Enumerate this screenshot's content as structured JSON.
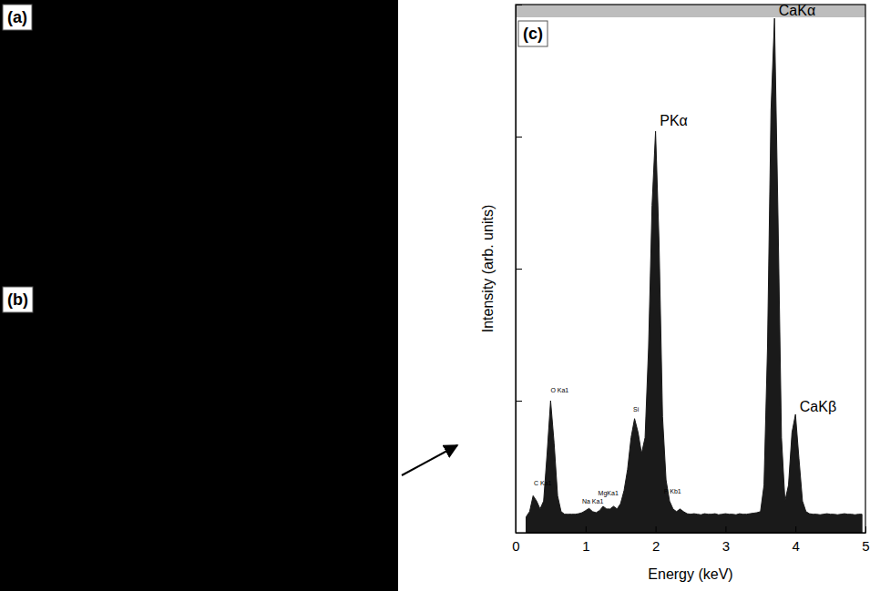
{
  "panels": [
    {
      "label": "(a)"
    },
    {
      "label": "(b)"
    }
  ],
  "chart_data": {
    "type": "area",
    "panel_label": "(c)",
    "x_label": "Energy (keV)",
    "y_label": "Intensity (arb. units)",
    "x": [
      0.15,
      0.2,
      0.25,
      0.3,
      0.35,
      0.4,
      0.45,
      0.5,
      0.55,
      0.6,
      0.65,
      0.7,
      0.75,
      0.8,
      0.85,
      0.9,
      0.95,
      1.0,
      1.05,
      1.1,
      1.15,
      1.2,
      1.25,
      1.3,
      1.35,
      1.4,
      1.45,
      1.5,
      1.55,
      1.6,
      1.65,
      1.7,
      1.75,
      1.8,
      1.85,
      1.9,
      1.95,
      2.0,
      2.05,
      2.1,
      2.15,
      2.2,
      2.25,
      2.3,
      2.35,
      2.4,
      2.45,
      2.5,
      2.55,
      2.6,
      2.65,
      2.7,
      2.75,
      2.8,
      2.85,
      2.9,
      2.95,
      3.0,
      3.05,
      3.1,
      3.15,
      3.2,
      3.25,
      3.3,
      3.35,
      3.4,
      3.45,
      3.5,
      3.55,
      3.6,
      3.65,
      3.7,
      3.75,
      3.8,
      3.85,
      3.9,
      3.95,
      4.0,
      4.05,
      4.1,
      4.15,
      4.2,
      4.25,
      4.3,
      4.35,
      4.4,
      4.45,
      4.5,
      4.55,
      4.6,
      4.65,
      4.7,
      4.75,
      4.8,
      4.85,
      4.9,
      4.95
    ],
    "values": [
      3,
      4,
      7,
      6,
      4.5,
      6,
      15,
      25,
      17,
      7,
      4,
      3.5,
      3.5,
      3.5,
      3.5,
      3.6,
      3.8,
      4.2,
      4.6,
      4,
      3.8,
      4.2,
      5,
      4.5,
      4.5,
      5,
      4.5,
      5.5,
      8,
      12,
      18,
      21.6,
      19,
      15,
      18,
      35,
      62,
      76,
      55,
      22,
      10,
      6,
      4.5,
      4,
      4.5,
      4,
      3.6,
      3.5,
      3.6,
      3.5,
      3.4,
      3.6,
      3.5,
      3.5,
      3.6,
      3.4,
      3.5,
      3.6,
      3.5,
      3.5,
      3.4,
      3.6,
      3.5,
      3.5,
      3.6,
      3.7,
      3.8,
      4,
      9,
      35,
      80,
      97.4,
      60,
      18,
      6,
      9,
      19,
      22.4,
      14,
      6,
      4,
      3.6,
      3.5,
      3.5,
      3.4,
      3.5,
      3.6,
      3.5,
      3.5,
      3.4,
      3.5,
      3.6,
      3.5,
      3.5,
      3.4,
      3.5,
      3.5
    ],
    "color": "#1a1a1a",
    "xlim": [
      0,
      5
    ],
    "xticks": [
      0,
      1,
      2,
      3,
      4,
      5
    ],
    "ylim": [
      0,
      100
    ],
    "yticks": [
      0,
      25,
      50,
      75,
      100
    ],
    "tick_labels": "x",
    "annotations": [
      {
        "text": "CaKα",
        "x": 3.76,
        "y": 98
      },
      {
        "text": "PKα",
        "x": 2.06,
        "y": 77
      },
      {
        "text": "CaKβ",
        "x": 4.06,
        "y": 23
      },
      {
        "text": "O Ka1",
        "x": 0.5,
        "y": 26.5
      },
      {
        "text": "Si",
        "x": 1.68,
        "y": 23
      },
      {
        "text": "MgKa1",
        "x": 1.18,
        "y": 7
      },
      {
        "text": "Na Ka1",
        "x": 0.95,
        "y": 5.5
      },
      {
        "text": "C Ka1",
        "x": 0.26,
        "y": 9
      },
      {
        "text": "P Kb1",
        "x": 2.12,
        "y": 7.5
      }
    ]
  }
}
